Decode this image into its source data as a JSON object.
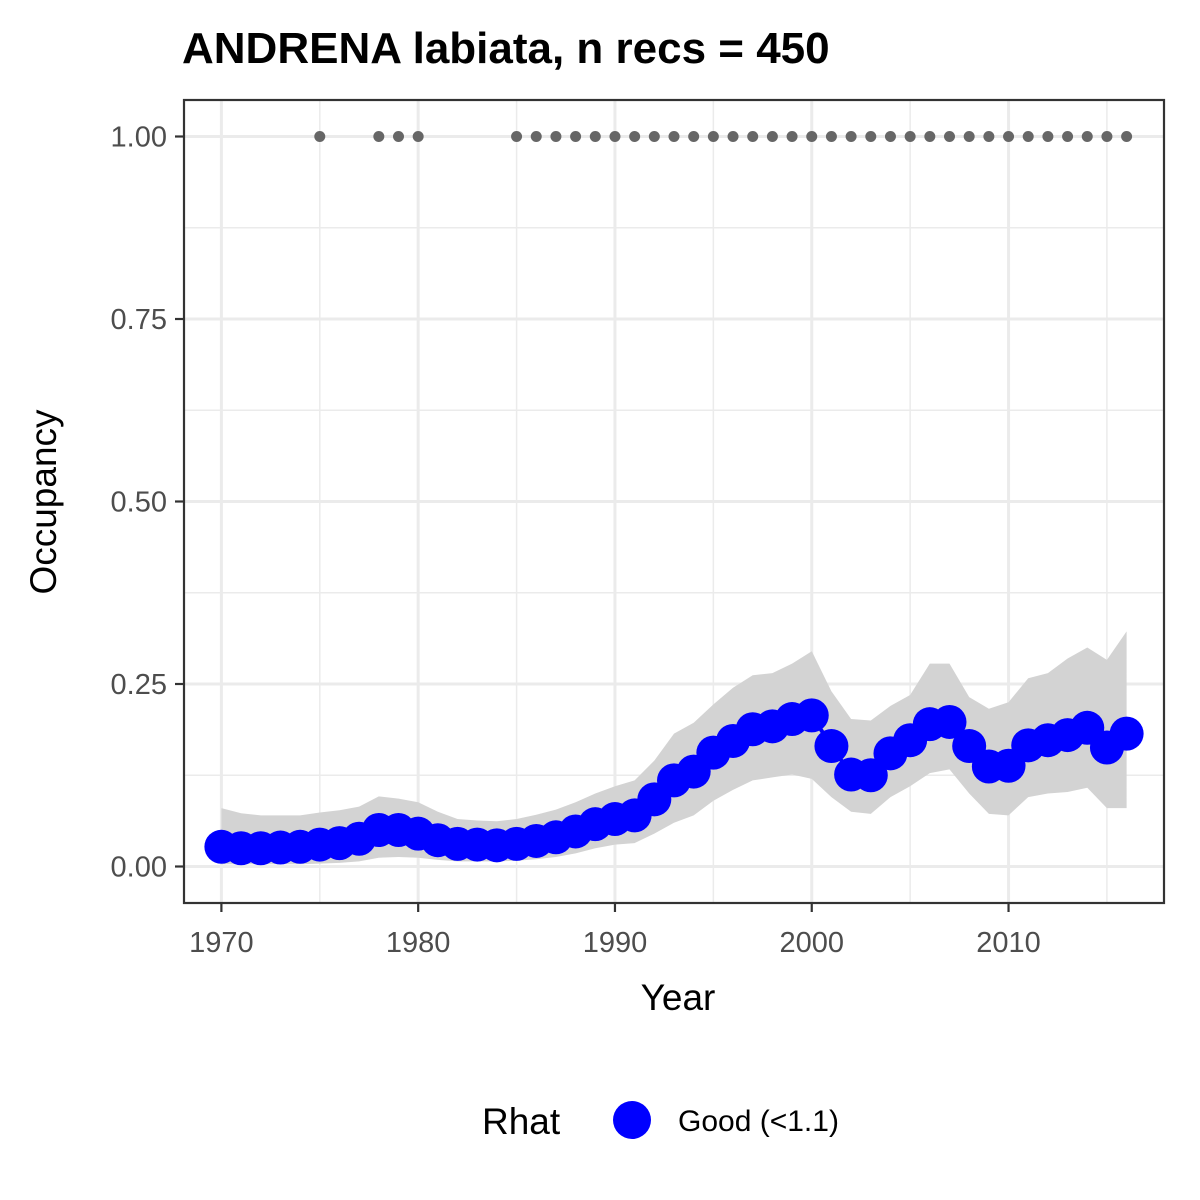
{
  "chart_data": {
    "type": "line",
    "title": "ANDRENA labiata, n recs = 450",
    "xlabel": "Year",
    "ylabel": "Occupancy",
    "xlim": [
      1968.1,
      2017.9
    ],
    "ylim": [
      -0.05,
      1.05
    ],
    "x_ticks": [
      1970,
      1980,
      1990,
      2000,
      2010
    ],
    "x_tick_labels": [
      "1970",
      "1980",
      "1990",
      "2000",
      "2010"
    ],
    "y_ticks": [
      0,
      0.25,
      0.5,
      0.75,
      1.0
    ],
    "y_tick_labels": [
      "0.00",
      "0.25",
      "0.50",
      "0.75",
      "1.00"
    ],
    "grid": true,
    "legend": {
      "position": "bottom",
      "title": "Rhat",
      "entries": [
        {
          "label": "Good (<1.1)",
          "color": "#0000ff"
        }
      ]
    },
    "colors": {
      "series": "#0000ff",
      "ribbon": "#d3d3d3",
      "records": "#666666",
      "grid": "#ebebeb",
      "panel_border": "#333333"
    },
    "series": [
      {
        "name": "Good (<1.1)",
        "x": [
          1970,
          1971,
          1972,
          1973,
          1974,
          1975,
          1976,
          1977,
          1978,
          1979,
          1980,
          1981,
          1982,
          1983,
          1984,
          1985,
          1986,
          1987,
          1988,
          1989,
          1990,
          1991,
          1992,
          1993,
          1994,
          1995,
          1996,
          1997,
          1998,
          1999,
          2000,
          2001,
          2002,
          2003,
          2004,
          2005,
          2006,
          2007,
          2008,
          2009,
          2010,
          2011,
          2012,
          2013,
          2014,
          2015,
          2016
        ],
        "y": [
          0.027,
          0.025,
          0.025,
          0.026,
          0.027,
          0.03,
          0.032,
          0.038,
          0.05,
          0.05,
          0.045,
          0.036,
          0.031,
          0.03,
          0.029,
          0.031,
          0.035,
          0.04,
          0.048,
          0.058,
          0.065,
          0.07,
          0.092,
          0.118,
          0.13,
          0.156,
          0.172,
          0.188,
          0.192,
          0.202,
          0.207,
          0.165,
          0.126,
          0.125,
          0.155,
          0.173,
          0.195,
          0.198,
          0.165,
          0.137,
          0.138,
          0.166,
          0.173,
          0.18,
          0.19,
          0.163,
          0.182
        ],
        "lower": [
          0.003,
          0.003,
          0.003,
          0.003,
          0.003,
          0.004,
          0.005,
          0.007,
          0.012,
          0.013,
          0.012,
          0.009,
          0.007,
          0.007,
          0.007,
          0.008,
          0.01,
          0.013,
          0.018,
          0.025,
          0.03,
          0.032,
          0.045,
          0.06,
          0.07,
          0.09,
          0.105,
          0.118,
          0.122,
          0.126,
          0.12,
          0.095,
          0.075,
          0.072,
          0.095,
          0.11,
          0.128,
          0.133,
          0.1,
          0.072,
          0.07,
          0.095,
          0.1,
          0.102,
          0.108,
          0.08,
          0.08
        ],
        "upper": [
          0.08,
          0.073,
          0.07,
          0.07,
          0.07,
          0.074,
          0.077,
          0.082,
          0.096,
          0.093,
          0.088,
          0.075,
          0.065,
          0.063,
          0.062,
          0.065,
          0.071,
          0.078,
          0.088,
          0.1,
          0.11,
          0.118,
          0.145,
          0.182,
          0.197,
          0.222,
          0.245,
          0.262,
          0.265,
          0.278,
          0.295,
          0.24,
          0.202,
          0.2,
          0.22,
          0.235,
          0.278,
          0.278,
          0.232,
          0.216,
          0.225,
          0.258,
          0.265,
          0.285,
          0.3,
          0.283,
          0.322
        ]
      }
    ],
    "record_years": [
      1975,
      1978,
      1979,
      1980,
      1985,
      1986,
      1987,
      1988,
      1989,
      1990,
      1991,
      1992,
      1993,
      1994,
      1995,
      1996,
      1997,
      1998,
      1999,
      2000,
      2001,
      2002,
      2003,
      2004,
      2005,
      2006,
      2007,
      2008,
      2009,
      2010,
      2011,
      2012,
      2013,
      2014,
      2015,
      2016
    ],
    "record_value": 1.0
  }
}
